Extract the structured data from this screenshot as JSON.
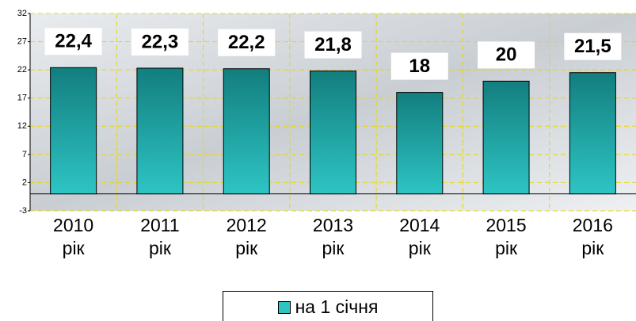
{
  "chart_data": {
    "type": "bar",
    "categories": [
      "2010 рік",
      "2011 рік",
      "2012 рік",
      "2013 рік",
      "2014 рік",
      "2015 рік",
      "2016 рік"
    ],
    "series": [
      {
        "name": "на 1 січня",
        "color": "#2ec4c4",
        "values": [
          22.4,
          22.3,
          22.2,
          21.8,
          18,
          20,
          21.5
        ],
        "value_labels": [
          "22,4",
          "22,3",
          "22,2",
          "21,8",
          "18",
          "20",
          "21,5"
        ]
      }
    ],
    "ylim": [
      -3,
      32
    ],
    "yticks": [
      -3,
      2,
      7,
      12,
      17,
      22,
      27,
      32
    ],
    "grid": true,
    "legend": "bottom"
  }
}
